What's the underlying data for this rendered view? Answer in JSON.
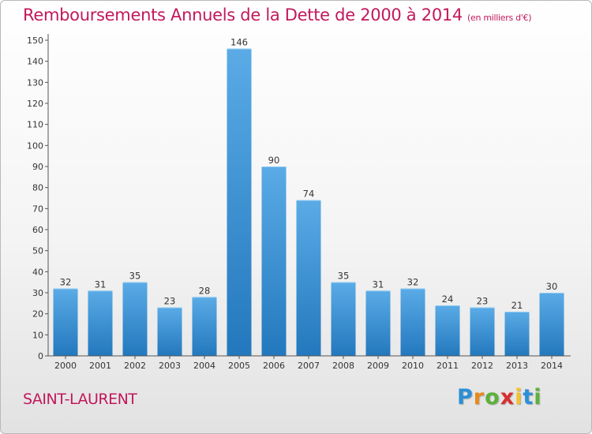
{
  "chart_data": {
    "type": "bar",
    "title": "Remboursements Annuels de la Dette de 2000 à 2014",
    "unit_note": "(en milliers d'€)",
    "categories": [
      "2000",
      "2001",
      "2002",
      "2003",
      "2004",
      "2005",
      "2006",
      "2007",
      "2008",
      "2009",
      "2010",
      "2011",
      "2012",
      "2013",
      "2014"
    ],
    "values": [
      32,
      31,
      35,
      23,
      28,
      146,
      90,
      74,
      35,
      31,
      32,
      24,
      23,
      21,
      30
    ],
    "ylim": [
      0,
      150
    ],
    "yticks": [
      0,
      10,
      20,
      30,
      40,
      50,
      60,
      70,
      80,
      90,
      100,
      110,
      120,
      130,
      140,
      150
    ],
    "grid": false,
    "bar_color_top": "#5aabe6",
    "bar_color_bottom": "#2378bd"
  },
  "commune": "SAINT-LAURENT",
  "logo": {
    "letters": [
      "P",
      "r",
      "o",
      "x",
      "i",
      "t",
      "i"
    ],
    "colors": [
      "#2a8fd6",
      "#e8891a",
      "#5bb13a",
      "#d82e2e",
      "#f2c12e",
      "#2a8fd6",
      "#5bb13a"
    ]
  }
}
